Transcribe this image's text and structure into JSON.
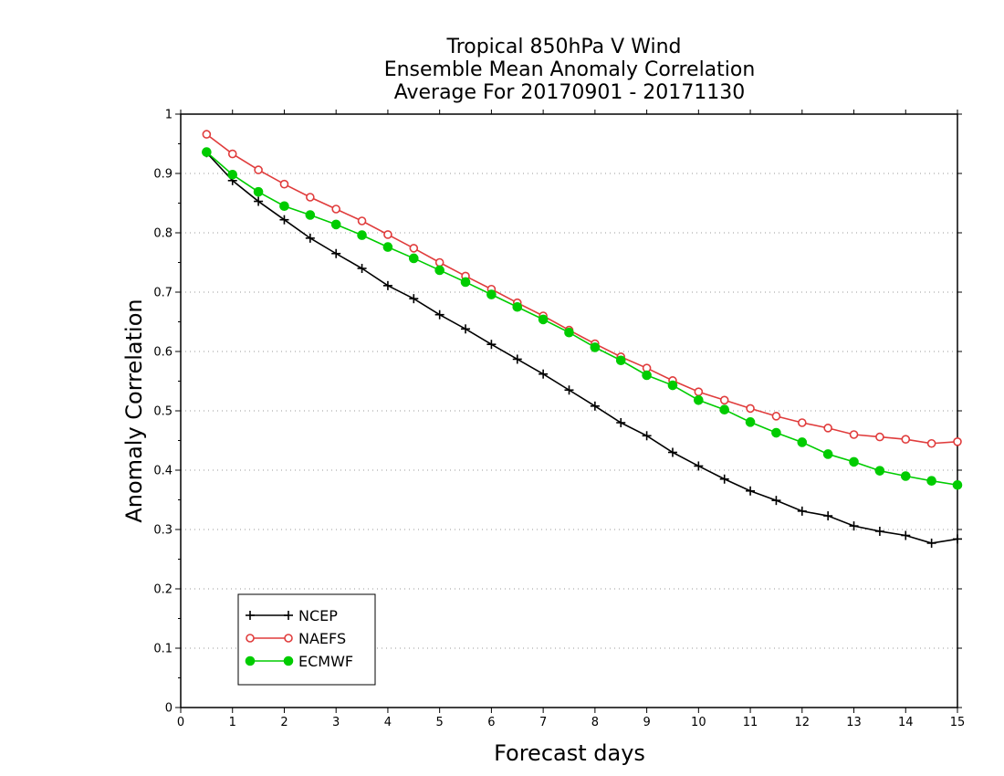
{
  "chart_data": {
    "type": "line",
    "title_lines": [
      "Tropical 850hPa V Wind",
      "Ensemble Mean Anomaly Correlation",
      "Average For 20170901 - 20171130"
    ],
    "xlabel": "Forecast days",
    "ylabel": "Anomaly Correlation",
    "xlim": [
      0,
      15
    ],
    "ylim": [
      0,
      1
    ],
    "x_ticks": [
      "0",
      "1",
      "2",
      "3",
      "4",
      "5",
      "6",
      "7",
      "8",
      "9",
      "10",
      "11",
      "12",
      "13",
      "14",
      "15"
    ],
    "y_ticks": [
      "0",
      "0.1",
      "0.2",
      "0.3",
      "0.4",
      "0.5",
      "0.6",
      "0.7",
      "0.8",
      "0.9",
      "1"
    ],
    "grid": "horizontal-dotted",
    "legend_position": "bottom-left",
    "x": [
      0.5,
      1,
      1.5,
      2,
      2.5,
      3,
      3.5,
      4,
      4.5,
      5,
      5.5,
      6,
      6.5,
      7,
      7.5,
      8,
      8.5,
      9,
      9.5,
      10,
      10.5,
      11,
      11.5,
      12,
      12.5,
      13,
      13.5,
      14,
      14.5,
      15
    ],
    "series": [
      {
        "name": "NCEP",
        "color": "#000000",
        "marker": "plus",
        "values": [
          0.935,
          0.888,
          0.853,
          0.822,
          0.791,
          0.765,
          0.74,
          0.711,
          0.689,
          0.662,
          0.638,
          0.612,
          0.587,
          0.562,
          0.535,
          0.508,
          0.48,
          0.458,
          0.43,
          0.407,
          0.385,
          0.365,
          0.349,
          0.331,
          0.323,
          0.306,
          0.297,
          0.29,
          0.277,
          0.284
        ]
      },
      {
        "name": "NAEFS",
        "color": "#e03c3c",
        "marker": "open-circle",
        "values": [
          0.966,
          0.933,
          0.906,
          0.882,
          0.86,
          0.84,
          0.82,
          0.797,
          0.774,
          0.75,
          0.727,
          0.705,
          0.682,
          0.66,
          0.636,
          0.613,
          0.591,
          0.572,
          0.551,
          0.532,
          0.518,
          0.504,
          0.491,
          0.48,
          0.471,
          0.46,
          0.456,
          0.452,
          0.445,
          0.448
        ]
      },
      {
        "name": "ECMWF",
        "color": "#00cc00",
        "marker": "filled-circle",
        "values": [
          0.936,
          0.898,
          0.869,
          0.845,
          0.83,
          0.814,
          0.796,
          0.776,
          0.757,
          0.737,
          0.717,
          0.696,
          0.675,
          0.654,
          0.632,
          0.607,
          0.585,
          0.56,
          0.543,
          0.518,
          0.502,
          0.481,
          0.463,
          0.447,
          0.427,
          0.414,
          0.399,
          0.39,
          0.382,
          0.375
        ]
      }
    ]
  }
}
